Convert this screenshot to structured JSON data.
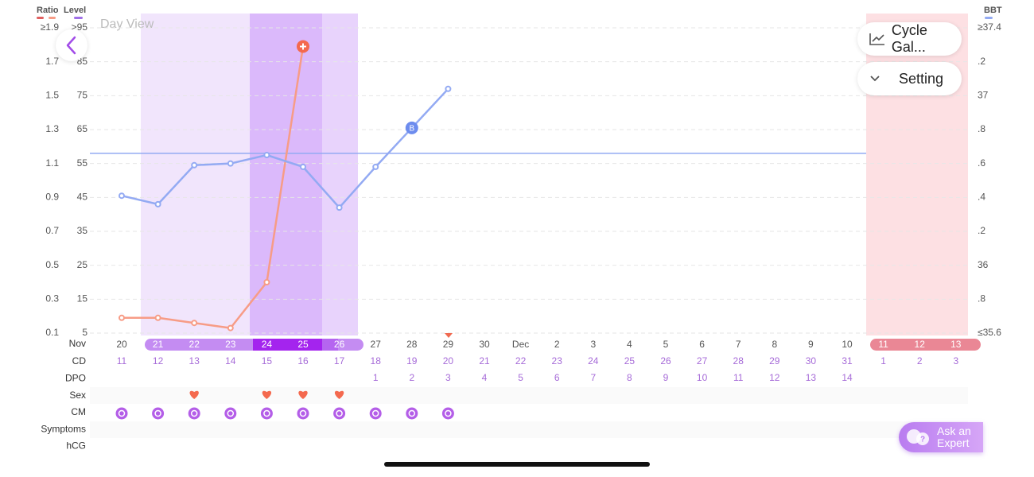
{
  "chart_data": {
    "type": "line",
    "view_label": "Day View",
    "legend": {
      "ratio": "Ratio",
      "level": "Level",
      "bbt": "BBT"
    },
    "month_label": "Nov",
    "categories": [
      "20",
      "21",
      "22",
      "23",
      "24",
      "25",
      "26",
      "27",
      "28",
      "29",
      "30",
      "Dec",
      "2",
      "3",
      "4",
      "5",
      "6",
      "7",
      "8",
      "9",
      "10",
      "11",
      "12",
      "13"
    ],
    "ylim": [
      0.1,
      1.9
    ],
    "yticks": [
      {
        "value": 1.9,
        "label": "≥1.9"
      },
      1.7,
      1.5,
      1.3,
      1.1,
      0.9,
      0.7,
      0.5,
      0.3,
      0.1
    ],
    "level_lim": [
      5,
      95
    ],
    "level_ticks": [
      {
        "value": 95,
        "label": ">95"
      },
      85,
      75,
      65,
      55,
      45,
      35,
      25,
      15,
      5
    ],
    "y2lim": [
      35.6,
      37.4
    ],
    "y2ticks": [
      {
        "value": 37.4,
        "label": "≥37.4"
      },
      {
        "value": 37.2,
        "label": ".2"
      },
      37,
      {
        "value": 36.8,
        "label": ".8"
      },
      {
        "value": 36.6,
        "label": ".6"
      },
      {
        "value": 36.4,
        "label": ".4"
      },
      {
        "value": 36.2,
        "label": ".2"
      },
      36,
      {
        "value": 35.8,
        "label": ".8"
      },
      {
        "value": 35.6,
        "label": "≤35.6"
      }
    ],
    "grid": true,
    "series": [
      {
        "name": "Ratio",
        "color": "#f79c86",
        "values": [
          0.19,
          0.19,
          0.16,
          0.13,
          0.4,
          1.79,
          null,
          null,
          null,
          null,
          null,
          null,
          null,
          null,
          null,
          null,
          null,
          null,
          null,
          null,
          null,
          null,
          null,
          null
        ]
      },
      {
        "name": "BBT",
        "color": "#93aaf3",
        "axis": "y2",
        "values": [
          36.41,
          36.36,
          36.59,
          36.6,
          36.65,
          36.58,
          36.34,
          36.58,
          36.81,
          37.04,
          null,
          null,
          null,
          null,
          null,
          null,
          null,
          null,
          null,
          null,
          null,
          null,
          null,
          null
        ]
      }
    ],
    "cover_line": 36.66,
    "bbt_marker": "B",
    "row_labels": [
      "CD",
      "DPO",
      "Sex",
      "CM",
      "Symptoms",
      "hCG"
    ],
    "cd": [
      11,
      12,
      13,
      14,
      15,
      16,
      17,
      18,
      19,
      20,
      21,
      22,
      23,
      24,
      25,
      26,
      27,
      28,
      29,
      30,
      31,
      1,
      2,
      3
    ],
    "dpo": [
      null,
      null,
      null,
      null,
      null,
      null,
      null,
      1,
      2,
      3,
      4,
      5,
      6,
      7,
      8,
      9,
      10,
      11,
      12,
      13,
      14,
      null,
      null,
      null
    ],
    "sex": [
      false,
      false,
      true,
      false,
      true,
      true,
      true,
      false,
      false,
      false,
      false,
      false,
      false,
      false,
      false,
      false,
      false,
      false,
      false,
      false,
      false,
      false,
      false,
      false
    ],
    "cm": [
      true,
      true,
      true,
      true,
      true,
      true,
      true,
      true,
      true,
      true,
      false,
      false,
      false,
      false,
      false,
      false,
      false,
      false,
      false,
      false,
      false,
      false,
      false,
      false
    ]
  },
  "ui": {
    "cycle_button": "Cycle Gal...",
    "setting_button": "Setting",
    "expert_button": "Ask an Expert"
  }
}
